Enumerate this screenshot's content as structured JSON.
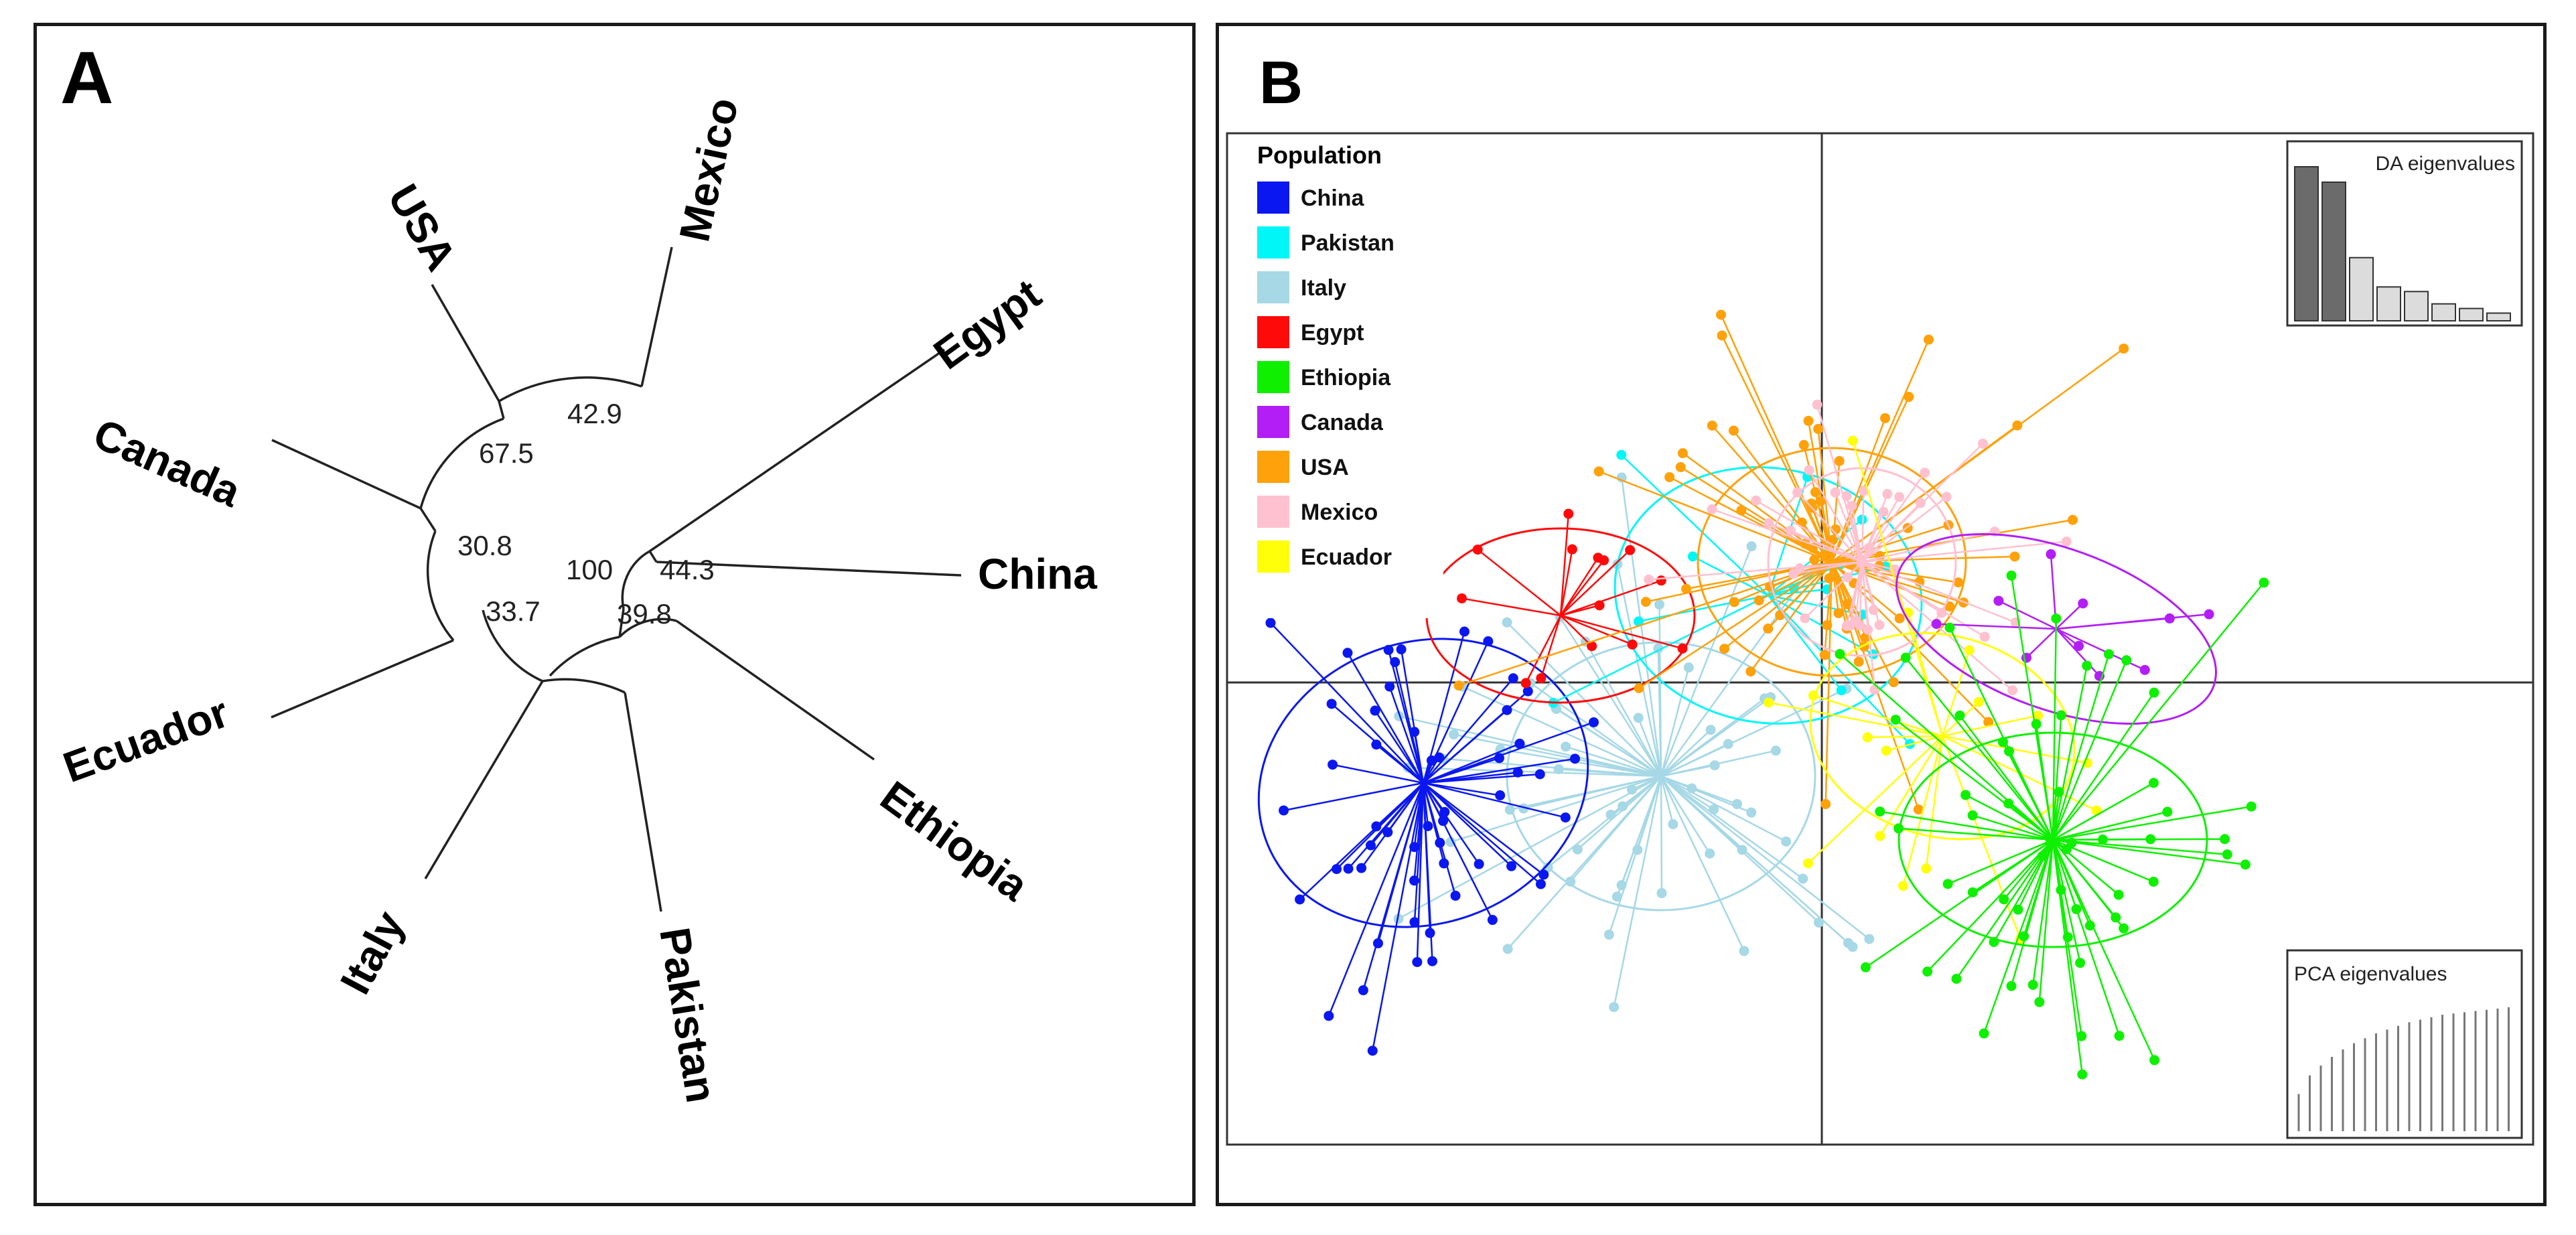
{
  "panel_a": {
    "letter": "A",
    "leaves": [
      "Mexico",
      "USA",
      "Egypt",
      "Canada",
      "China",
      "Ecuador",
      "Ethiopia",
      "Italy",
      "Pakistan"
    ],
    "bootstrap": [
      "42.9",
      "67.5",
      "30.8",
      "100",
      "44.3",
      "39.8",
      "33.7"
    ]
  },
  "panel_b": {
    "letter": "B",
    "legend_title": "Population",
    "populations": [
      {
        "name": "China",
        "color": "#0a17f0"
      },
      {
        "name": "Pakistan",
        "color": "#00f7f7"
      },
      {
        "name": "Italy",
        "color": "#a6d8e6"
      },
      {
        "name": "Egypt",
        "color": "#ff0a0a"
      },
      {
        "name": "Ethiopia",
        "color": "#0ff000"
      },
      {
        "name": "Canada",
        "color": "#b21ef5"
      },
      {
        "name": "USA",
        "color": "#ffa10a"
      },
      {
        "name": "Mexico",
        "color": "#ffc1cf"
      },
      {
        "name": "Ecuador",
        "color": "#ffff0a"
      }
    ],
    "da_title": "DA eigenvalues",
    "da_values": [
      100,
      90,
      41,
      22,
      19,
      11,
      8,
      5
    ],
    "pca_title": "PCA eigenvalues",
    "pca_values": [
      30,
      45,
      53,
      60,
      66,
      71,
      75,
      79,
      82,
      85,
      88,
      90,
      92,
      94,
      95,
      96,
      97,
      98,
      99,
      100
    ]
  }
}
